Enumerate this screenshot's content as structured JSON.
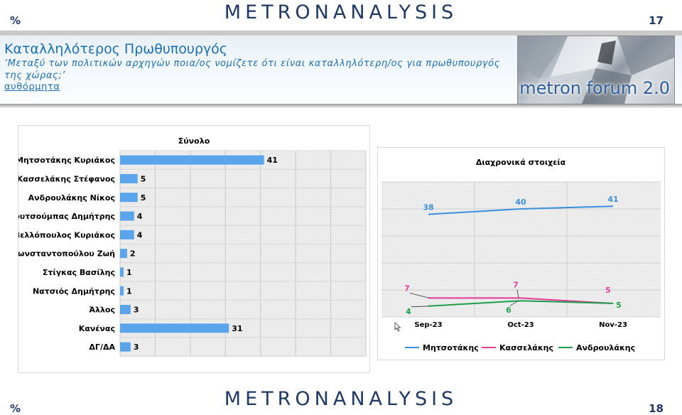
{
  "header": {
    "percent_sign": "%",
    "page_number": "17",
    "brand_left": "METRON",
    "brand_right": "ANALYSIS"
  },
  "banner": {
    "title": "Καταλληλότερος Πρωθυπουργός",
    "question": "‘Μεταξύ των πολιτικών αρχηγών ποια/ος νομίζετε ότι είναι καταλληλότερη/ος για πρωθυπουργός της χώρας;’",
    "link": "αυθόρμητα",
    "photo_caption": "metron forum 2.0"
  },
  "footer": {
    "percent_sign": "%",
    "page_number": "18",
    "brand_left": "METRON",
    "brand_right": "ANALYSIS"
  },
  "colors": {
    "bar": "#5aa4ec",
    "mitsotakis": "#3a8fde",
    "kasselakis": "#e23c96",
    "androulakis": "#1e9f4a",
    "brand": "#1f3864",
    "accent": "#1c6fb4"
  },
  "chart_data": [
    {
      "type": "bar",
      "orientation": "horizontal",
      "title": "Σύνολο",
      "categories": [
        "Μητσοτάκης Κυριάκος",
        "Κασσελάκης Στέφανος",
        "Ανδρουλάκης Νίκος",
        "Κουτσούμπας Δημήτρης",
        "Βελλόπουλος Κυριάκος",
        "Κωνσταντοπούλου Ζωή",
        "Στίγκας Βασίλης",
        "Νατσιός Δημήτρης",
        "Άλλος",
        "Κανένας",
        "ΔΓ/ΔΑ"
      ],
      "values": [
        41,
        5,
        5,
        4,
        4,
        2,
        1,
        1,
        3,
        31,
        3
      ],
      "xlim": [
        0,
        70
      ],
      "grid": true
    },
    {
      "type": "line",
      "title": "Διαχρονικά στοιχεία",
      "x": [
        "Sep-23",
        "Oct-23",
        "Nov-23"
      ],
      "series": [
        {
          "name": "Μητσοτάκης",
          "values": [
            38,
            40,
            41
          ]
        },
        {
          "name": "Κασσελάκης",
          "values": [
            7,
            7,
            5
          ]
        },
        {
          "name": "Ανδρουλάκης",
          "values": [
            4,
            6,
            5
          ]
        }
      ],
      "ylim": [
        0,
        50
      ],
      "grid": true,
      "legend": "bottom"
    }
  ]
}
